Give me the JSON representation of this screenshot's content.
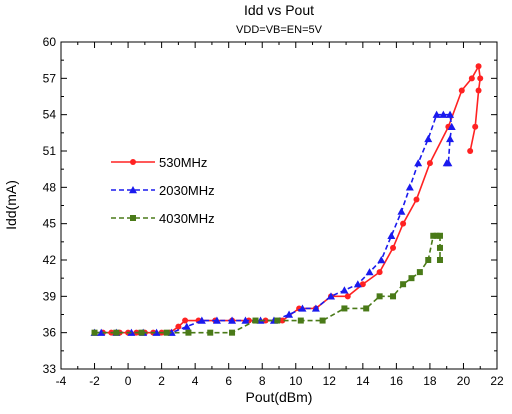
{
  "chart_data": {
    "type": "line",
    "title": "Idd vs Pout",
    "subtitle": "VDD=VB=EN=5V",
    "xlabel": "Pout(dBm)",
    "ylabel": "Idd(mA)",
    "xlim": [
      -4,
      22
    ],
    "ylim": [
      33,
      60
    ],
    "xticks": [
      -4,
      -2,
      0,
      2,
      4,
      6,
      8,
      10,
      12,
      14,
      16,
      18,
      20,
      22
    ],
    "yticks": [
      33,
      36,
      39,
      42,
      45,
      48,
      51,
      54,
      57,
      60
    ],
    "grid": false,
    "legend_position": "left-middle",
    "series": [
      {
        "name": "530MHz",
        "color": "#ff2222",
        "marker": "circle",
        "points": [
          [
            -2.0,
            36
          ],
          [
            -1.5,
            36
          ],
          [
            -1.0,
            36
          ],
          [
            -0.5,
            36
          ],
          [
            0.0,
            36
          ],
          [
            0.5,
            36
          ],
          [
            1.0,
            36
          ],
          [
            1.5,
            36
          ],
          [
            2.0,
            36
          ],
          [
            2.5,
            36
          ],
          [
            3.0,
            36.5
          ],
          [
            3.4,
            37
          ],
          [
            4.2,
            37
          ],
          [
            5.2,
            37
          ],
          [
            6.2,
            37
          ],
          [
            7.2,
            37
          ],
          [
            8.2,
            37
          ],
          [
            9.2,
            37
          ],
          [
            10.2,
            38
          ],
          [
            11.2,
            38
          ],
          [
            12.1,
            39
          ],
          [
            13.1,
            39
          ],
          [
            14.0,
            40
          ],
          [
            15.0,
            41
          ],
          [
            15.8,
            43
          ],
          [
            16.4,
            45
          ],
          [
            17.2,
            47
          ],
          [
            18.0,
            50
          ],
          [
            19.1,
            53
          ],
          [
            19.9,
            56
          ],
          [
            20.5,
            57
          ],
          [
            20.9,
            58
          ],
          [
            21.0,
            57
          ],
          [
            20.9,
            56
          ],
          [
            20.7,
            53
          ],
          [
            20.4,
            51
          ]
        ]
      },
      {
        "name": "2030MHz",
        "color": "#1a1aee",
        "marker": "triangle",
        "points": [
          [
            -2.0,
            36
          ],
          [
            -1.6,
            36
          ],
          [
            -0.7,
            36
          ],
          [
            0.2,
            36
          ],
          [
            0.9,
            36
          ],
          [
            1.7,
            36
          ],
          [
            2.6,
            36
          ],
          [
            3.5,
            36.5
          ],
          [
            4.4,
            37
          ],
          [
            5.3,
            37
          ],
          [
            6.2,
            37
          ],
          [
            7.0,
            37
          ],
          [
            7.9,
            37
          ],
          [
            8.7,
            37
          ],
          [
            9.6,
            37.5
          ],
          [
            10.4,
            38
          ],
          [
            11.2,
            38
          ],
          [
            12.1,
            39
          ],
          [
            12.9,
            39.5
          ],
          [
            13.7,
            40
          ],
          [
            14.4,
            41
          ],
          [
            15.1,
            42
          ],
          [
            15.7,
            44
          ],
          [
            16.3,
            46
          ],
          [
            16.8,
            48
          ],
          [
            17.3,
            50
          ],
          [
            17.9,
            52
          ],
          [
            18.4,
            54
          ],
          [
            18.8,
            54
          ],
          [
            19.2,
            54
          ],
          [
            19.3,
            53
          ],
          [
            19.2,
            52
          ],
          [
            19.1,
            50
          ],
          [
            19.0,
            50
          ]
        ]
      },
      {
        "name": "4030MHz",
        "color": "#4a7a18",
        "marker": "square",
        "points": [
          [
            -2.0,
            36
          ],
          [
            -0.7,
            36
          ],
          [
            0.8,
            36
          ],
          [
            2.3,
            36
          ],
          [
            3.6,
            36
          ],
          [
            4.9,
            36
          ],
          [
            6.2,
            36
          ],
          [
            7.6,
            37
          ],
          [
            8.9,
            37
          ],
          [
            10.3,
            37
          ],
          [
            11.6,
            37
          ],
          [
            12.9,
            38
          ],
          [
            14.2,
            38
          ],
          [
            15.0,
            39
          ],
          [
            15.8,
            39
          ],
          [
            16.4,
            40
          ],
          [
            16.9,
            40.5
          ],
          [
            17.4,
            41
          ],
          [
            17.9,
            42
          ],
          [
            18.2,
            44
          ],
          [
            18.4,
            44
          ],
          [
            18.6,
            44
          ],
          [
            18.6,
            43
          ],
          [
            18.6,
            42
          ]
        ]
      }
    ]
  }
}
